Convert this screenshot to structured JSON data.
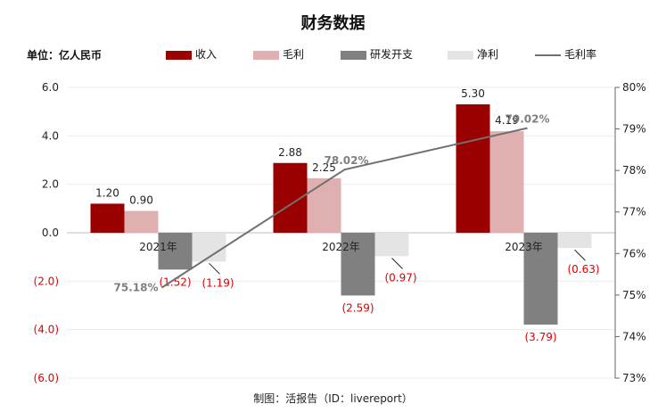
{
  "title": "财务数据",
  "unit_label": "单位：亿人民币",
  "credit": "制图：活报告（ID：livereport）",
  "chart_data": {
    "type": "bar",
    "categories": [
      "2021年",
      "2022年",
      "2023年"
    ],
    "series": [
      {
        "name": "收入",
        "values": [
          1.2,
          2.88,
          5.3
        ],
        "color": "#9B0000",
        "labels": [
          "1.20",
          "2.88",
          "5.30"
        ]
      },
      {
        "name": "毛利",
        "values": [
          0.9,
          2.25,
          4.19
        ],
        "color": "#E0B0B0",
        "labels": [
          "0.90",
          "2.25",
          "4.19"
        ]
      },
      {
        "name": "研发开支",
        "values": [
          -1.52,
          -2.59,
          -3.79
        ],
        "color": "#808080",
        "labels": [
          "(1.52)",
          "(2.59)",
          "(3.79)"
        ]
      },
      {
        "name": "净利",
        "values": [
          -1.19,
          -0.97,
          -0.63
        ],
        "color": "#E4E4E4",
        "labels": [
          "(1.19)",
          "(0.97)",
          "(0.63)"
        ]
      }
    ],
    "line_series": {
      "name": "毛利率",
      "values": [
        75.18,
        78.02,
        79.02
      ],
      "color": "#707070",
      "labels": [
        "75.18%",
        "78.02%",
        "79.02%"
      ],
      "axis": "right"
    },
    "y_left": {
      "min": -6,
      "max": 6,
      "ticks": [
        "6.0",
        "4.0",
        "2.0",
        "0.0",
        "(2.0)",
        "(4.0)",
        "(6.0)"
      ],
      "tick_values": [
        6,
        4,
        2,
        0,
        -2,
        -4,
        -6
      ],
      "negative_color": "#E00000"
    },
    "y_right": {
      "min": 73,
      "max": 80,
      "ticks": [
        "80%",
        "79%",
        "78%",
        "77%",
        "76%",
        "75%",
        "74%",
        "73%"
      ],
      "tick_values": [
        80,
        79,
        78,
        77,
        76,
        75,
        74,
        73
      ]
    },
    "negative_label_color": "#E00000",
    "grid": true,
    "legend_position": "top"
  }
}
